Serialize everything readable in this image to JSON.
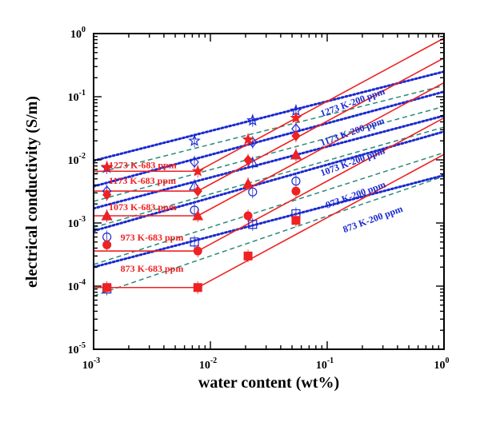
{
  "chart_data": {
    "type": "scatter",
    "title": "",
    "xlabel": "water content (wt%)",
    "ylabel": "electrical conductivity (S/m)",
    "x_scale": "log",
    "y_scale": "log",
    "xlim": [
      0.001,
      1
    ],
    "ylim": [
      1e-05,
      1
    ],
    "x_ticks": [
      {
        "value": 0.001,
        "base": "10",
        "exp": "-3"
      },
      {
        "value": 0.01,
        "base": "10",
        "exp": "-2"
      },
      {
        "value": 0.1,
        "base": "10",
        "exp": "-1"
      },
      {
        "value": 1,
        "base": "10",
        "exp": "0"
      }
    ],
    "y_ticks": [
      {
        "value": 1e-05,
        "base": "10",
        "exp": "-5"
      },
      {
        "value": 0.0001,
        "base": "10",
        "exp": "-4"
      },
      {
        "value": 0.001,
        "base": "10",
        "exp": "-3"
      },
      {
        "value": 0.01,
        "base": "10",
        "exp": "-2"
      },
      {
        "value": 0.1,
        "base": "10",
        "exp": "-1"
      },
      {
        "value": 1,
        "base": "10",
        "exp": "0"
      }
    ],
    "colors": {
      "red": "#ee2222",
      "blue": "#1a2ad0",
      "teal": "#2a8a7a"
    },
    "series_683": [
      {
        "name": "1273 K-683 ppm",
        "marker": "star",
        "x": [
          0.0013,
          0.0078,
          0.021,
          0.054
        ],
        "y": [
          0.0077,
          0.0066,
          0.021,
          0.046
        ],
        "sat_x": 0.0078,
        "sat_y": 0.0066,
        "label_at": [
          0.00135,
          0.0074
        ]
      },
      {
        "name": "1173 K-683 ppm",
        "marker": "diamond",
        "x": [
          0.0013,
          0.0078,
          0.021,
          0.054
        ],
        "y": [
          0.0028,
          0.0032,
          0.0099,
          0.024
        ],
        "sat_x": 0.0078,
        "sat_y": 0.0032,
        "label_at": [
          0.00135,
          0.0042
        ]
      },
      {
        "name": "1073 K-683 ppm",
        "marker": "triangle",
        "x": [
          0.0013,
          0.0078,
          0.021,
          0.054
        ],
        "y": [
          0.0013,
          0.0013,
          0.0042,
          0.012
        ],
        "sat_x": 0.0078,
        "sat_y": 0.0013,
        "label_at": [
          0.00135,
          0.0016
        ]
      },
      {
        "name": "973 K-683 ppm",
        "marker": "circle",
        "x": [
          0.0013,
          0.0078,
          0.021,
          0.054
        ],
        "y": [
          0.00045,
          0.00036,
          0.0013,
          0.0032
        ],
        "sat_x": 0.0078,
        "sat_y": 0.00036,
        "label_at": [
          0.0017,
          0.00053
        ]
      },
      {
        "name": "873 K-683 ppm",
        "marker": "square",
        "x": [
          0.0013,
          0.0078,
          0.021,
          0.054
        ],
        "y": [
          9.5e-05,
          9.5e-05,
          0.0003,
          0.0011
        ],
        "sat_x": 0.0078,
        "sat_y": 9.5e-05,
        "label_at": [
          0.0017,
          0.00017
        ]
      }
    ],
    "series_200": [
      {
        "name": "1273 K-200 ppm",
        "marker": "star-open",
        "x": [
          0.0013,
          0.0073,
          0.023,
          0.054
        ],
        "y": [
          0.0075,
          0.02,
          0.042,
          0.06
        ],
        "fit_y": [
          0.0097,
          0.25
        ],
        "label_at": [
          0.09,
          0.048
        ],
        "label_angle": -20
      },
      {
        "name": "1173 K-200 ppm",
        "marker": "diamond-open",
        "x": [
          0.0013,
          0.0073,
          0.023,
          0.054
        ],
        "y": [
          0.0032,
          0.0092,
          0.019,
          0.031
        ],
        "fit_y": [
          0.0038,
          0.12
        ],
        "label_at": [
          0.09,
          0.0165
        ],
        "label_angle": -20
      },
      {
        "name": "1073 K-200 ppm",
        "marker": "triangle-open",
        "x": [
          0.0013,
          0.0073,
          0.023,
          0.054
        ],
        "y": [
          0.0013,
          0.0039,
          0.009,
          0.012
        ],
        "fit_y": [
          0.0017,
          0.05
        ],
        "label_at": [
          0.09,
          0.0055
        ],
        "label_angle": -20
      },
      {
        "name": "973 K-200 ppm",
        "marker": "circle-open",
        "x": [
          0.0013,
          0.0073,
          0.023,
          0.054
        ],
        "y": [
          0.0006,
          0.0016,
          0.0031,
          0.0046
        ],
        "fit_y": [
          0.00075,
          0.028
        ],
        "label_at": [
          0.1,
          0.0017
        ],
        "label_angle": -20
      },
      {
        "name": "873 K-200 ppm",
        "marker": "square-open",
        "x": [
          0.0013,
          0.0073,
          0.023,
          0.054
        ],
        "y": [
          9e-05,
          0.0005,
          0.00095,
          0.0014
        ],
        "fit_y": [
          0.0002,
          0.0057
        ],
        "label_at": [
          0.14,
          0.0007
        ],
        "label_angle": -20
      }
    ],
    "teal_dashed_lines": [
      {
        "x": [
          0.001,
          1
        ],
        "y": [
          0.006,
          0.15
        ]
      },
      {
        "x": [
          0.001,
          1
        ],
        "y": [
          0.0022,
          0.07
        ]
      },
      {
        "x": [
          0.001,
          1
        ],
        "y": [
          0.00085,
          0.033
        ]
      },
      {
        "x": [
          0.001,
          1
        ],
        "y": [
          0.00022,
          0.013
        ]
      },
      {
        "x": [
          0.001,
          1
        ],
        "y": [
          7e-05,
          0.0055
        ]
      }
    ]
  }
}
